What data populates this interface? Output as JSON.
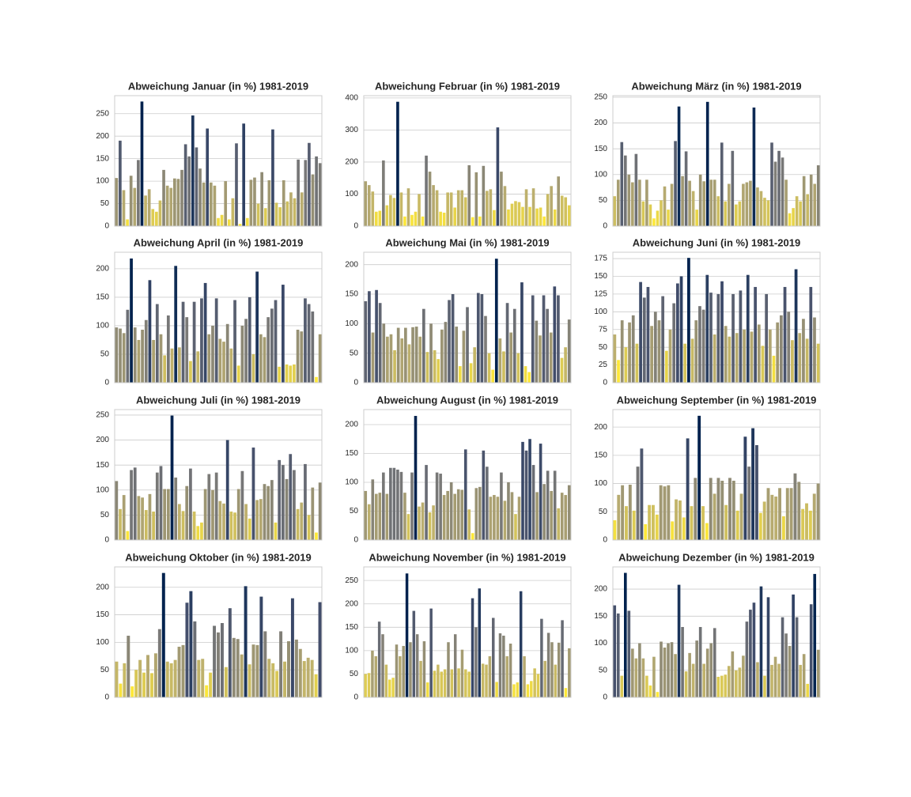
{
  "chart_data": [
    {
      "type": "bar",
      "title": "Abweichung Januar (in %) 1981-2019",
      "colormap": "cividis_r",
      "grid": true,
      "ylim": [
        0,
        290
      ],
      "yticks": [
        0,
        50,
        100,
        150,
        200,
        250
      ],
      "values": [
        107,
        190,
        80,
        15,
        112,
        85,
        147,
        277,
        68,
        82,
        38,
        32,
        57,
        125,
        90,
        85,
        106,
        105,
        125,
        182,
        155,
        246,
        175,
        128,
        97,
        217,
        97,
        90,
        18,
        25,
        100,
        15,
        62,
        184,
        5,
        228,
        18,
        103,
        108,
        50,
        120,
        40,
        102,
        215,
        52,
        42,
        102,
        55,
        75,
        62,
        148,
        75,
        147,
        185,
        115,
        155,
        140
      ]
    },
    {
      "type": "bar",
      "title": "Abweichung Februar (in %) 1981-2019",
      "colormap": "cividis_r",
      "grid": true,
      "ylim": [
        0,
        407
      ],
      "yticks": [
        0,
        100,
        200,
        300,
        400
      ],
      "values": [
        140,
        128,
        108,
        45,
        48,
        205,
        65,
        97,
        88,
        388,
        105,
        30,
        118,
        35,
        45,
        100,
        30,
        220,
        170,
        128,
        112,
        45,
        42,
        105,
        105,
        58,
        112,
        112,
        90,
        190,
        28,
        168,
        30,
        188,
        110,
        115,
        50,
        308,
        170,
        125,
        52,
        70,
        78,
        75,
        60,
        115,
        60,
        118,
        55,
        58,
        30,
        100,
        125,
        52,
        155,
        95,
        90,
        65
      ]
    },
    {
      "type": "bar",
      "title": "Abweichung März (in %) 1981-2019",
      "colormap": "cividis_r",
      "grid": true,
      "ylim": [
        0,
        253
      ],
      "yticks": [
        0,
        50,
        100,
        150,
        200,
        250
      ],
      "values": [
        58,
        90,
        163,
        137,
        100,
        85,
        140,
        90,
        48,
        90,
        42,
        15,
        30,
        50,
        77,
        32,
        82,
        165,
        232,
        97,
        145,
        88,
        68,
        32,
        100,
        87,
        241,
        90,
        90,
        58,
        162,
        48,
        82,
        146,
        42,
        48,
        82,
        85,
        88,
        230,
        75,
        68,
        55,
        50,
        162,
        125,
        146,
        133,
        90,
        25,
        35,
        58,
        48,
        97,
        62,
        100,
        82,
        118
      ]
    },
    {
      "type": "bar",
      "title": "Abweichung April (in %) 1981-2019",
      "colormap": "cividis_r",
      "grid": true,
      "ylim": [
        0,
        229
      ],
      "yticks": [
        0,
        50,
        100,
        150,
        200
      ],
      "values": [
        97,
        95,
        87,
        128,
        218,
        97,
        75,
        93,
        110,
        180,
        75,
        138,
        85,
        48,
        118,
        60,
        205,
        62,
        142,
        115,
        38,
        142,
        55,
        148,
        175,
        85,
        100,
        148,
        77,
        72,
        103,
        60,
        145,
        30,
        100,
        112,
        150,
        50,
        195,
        85,
        80,
        115,
        130,
        145,
        28,
        172,
        32,
        30,
        32,
        93,
        90,
        148,
        138,
        125,
        10,
        85
      ]
    },
    {
      "type": "bar",
      "title": "Abweichung Mai (in %) 1981-2019",
      "colormap": "cividis_r",
      "grid": true,
      "ylim": [
        0,
        221
      ],
      "yticks": [
        0,
        50,
        100,
        150,
        200
      ],
      "values": [
        138,
        155,
        85,
        157,
        135,
        100,
        78,
        82,
        55,
        93,
        75,
        93,
        65,
        94,
        95,
        78,
        125,
        52,
        100,
        55,
        40,
        90,
        103,
        140,
        150,
        95,
        28,
        88,
        128,
        33,
        60,
        152,
        150,
        113,
        50,
        22,
        210,
        75,
        53,
        135,
        85,
        125,
        50,
        170,
        28,
        18,
        148,
        105,
        80,
        148,
        125,
        85,
        163,
        148,
        42,
        60,
        107
      ]
    },
    {
      "type": "bar",
      "title": "Abweichung Juni (in %) 1981-2019",
      "colormap": "cividis_r",
      "grid": true,
      "ylim": [
        0,
        184
      ],
      "yticks": [
        0,
        25,
        50,
        75,
        100,
        125,
        150,
        175
      ],
      "values": [
        68,
        32,
        88,
        50,
        85,
        95,
        55,
        142,
        120,
        135,
        80,
        100,
        88,
        122,
        45,
        75,
        112,
        140,
        150,
        55,
        176,
        62,
        88,
        108,
        103,
        152,
        127,
        68,
        125,
        143,
        80,
        65,
        125,
        70,
        130,
        75,
        152,
        72,
        135,
        82,
        52,
        125,
        75,
        38,
        85,
        95,
        135,
        100,
        60,
        160,
        70,
        90,
        62,
        135,
        92,
        55
      ]
    },
    {
      "type": "bar",
      "title": "Abweichung Juli (in %) 1981-2019",
      "colormap": "cividis_r",
      "grid": true,
      "ylim": [
        0,
        261
      ],
      "yticks": [
        0,
        50,
        100,
        150,
        200,
        250
      ],
      "values": [
        118,
        62,
        90,
        18,
        140,
        145,
        88,
        85,
        60,
        92,
        57,
        135,
        148,
        102,
        102,
        249,
        125,
        72,
        58,
        108,
        143,
        57,
        28,
        35,
        102,
        132,
        100,
        135,
        78,
        73,
        200,
        57,
        55,
        102,
        138,
        72,
        43,
        185,
        80,
        82,
        112,
        108,
        120,
        35,
        160,
        150,
        122,
        172,
        140,
        62,
        75,
        152,
        50,
        105,
        15,
        115
      ]
    },
    {
      "type": "bar",
      "title": "Abweichung August (in %) 1981-2019",
      "colormap": "cividis_r",
      "grid": true,
      "ylim": [
        0,
        226
      ],
      "yticks": [
        0,
        50,
        100,
        150,
        200
      ],
      "values": [
        85,
        62,
        105,
        80,
        82,
        117,
        80,
        125,
        125,
        122,
        118,
        82,
        45,
        117,
        215,
        58,
        65,
        130,
        48,
        60,
        117,
        115,
        78,
        85,
        100,
        80,
        88,
        87,
        157,
        53,
        12,
        90,
        92,
        155,
        127,
        75,
        78,
        75,
        117,
        68,
        100,
        83,
        45,
        75,
        170,
        155,
        175,
        130,
        83,
        167,
        97,
        120,
        85,
        120,
        55,
        82,
        78,
        95
      ]
    },
    {
      "type": "bar",
      "title": "Abweichung September (in %) 1981-2019",
      "colormap": "cividis_r",
      "grid": true,
      "ylim": [
        0,
        231
      ],
      "yticks": [
        0,
        50,
        100,
        150,
        200
      ],
      "values": [
        35,
        80,
        97,
        60,
        98,
        52,
        130,
        162,
        28,
        62,
        62,
        45,
        97,
        95,
        97,
        33,
        72,
        70,
        40,
        180,
        60,
        110,
        220,
        60,
        30,
        110,
        82,
        110,
        105,
        62,
        110,
        105,
        52,
        82,
        183,
        130,
        198,
        168,
        48,
        68,
        92,
        80,
        77,
        92,
        42,
        92,
        92,
        118,
        103,
        55,
        65,
        52,
        82,
        100
      ]
    },
    {
      "type": "bar",
      "title": "Abweichung Oktober (in %) 1981-2019",
      "colormap": "cividis_r",
      "grid": true,
      "ylim": [
        0,
        237
      ],
      "yticks": [
        0,
        50,
        100,
        150,
        200
      ],
      "values": [
        65,
        25,
        62,
        112,
        20,
        50,
        68,
        45,
        77,
        44,
        80,
        124,
        226,
        65,
        62,
        68,
        92,
        95,
        172,
        193,
        138,
        68,
        70,
        22,
        45,
        130,
        118,
        135,
        55,
        162,
        108,
        106,
        78,
        202,
        60,
        96,
        95,
        183,
        120,
        70,
        62,
        48,
        120,
        65,
        102,
        180,
        105,
        88,
        66,
        72,
        68,
        42,
        173
      ]
    },
    {
      "type": "bar",
      "title": "Abweichung November (in %) 1981-2019",
      "colormap": "cividis_r",
      "grid": true,
      "ylim": [
        0,
        279
      ],
      "yticks": [
        0,
        50,
        100,
        150,
        200,
        250
      ],
      "values": [
        50,
        52,
        100,
        88,
        162,
        135,
        70,
        38,
        42,
        113,
        88,
        110,
        265,
        118,
        185,
        135,
        78,
        120,
        32,
        190,
        57,
        70,
        55,
        60,
        118,
        60,
        135,
        62,
        102,
        60,
        55,
        212,
        150,
        233,
        72,
        70,
        88,
        170,
        33,
        137,
        132,
        88,
        115,
        28,
        32,
        227,
        88,
        28,
        35,
        62,
        50,
        168,
        78,
        138,
        118,
        70,
        117,
        165,
        20,
        105
      ]
    },
    {
      "type": "bar",
      "title": "Abweichung Dezember (in %) 1981-2019",
      "colormap": "cividis_r",
      "grid": true,
      "ylim": [
        0,
        241
      ],
      "yticks": [
        0,
        50,
        100,
        150,
        200
      ],
      "values": [
        170,
        155,
        40,
        230,
        160,
        90,
        72,
        100,
        72,
        40,
        22,
        75,
        10,
        103,
        92,
        100,
        102,
        80,
        208,
        130,
        48,
        82,
        62,
        105,
        130,
        62,
        90,
        100,
        128,
        38,
        40,
        42,
        58,
        85,
        50,
        55,
        77,
        140,
        162,
        175,
        65,
        205,
        40,
        185,
        60,
        75,
        62,
        148,
        118,
        95,
        190,
        148,
        60,
        80,
        25,
        172,
        228,
        88
      ]
    }
  ]
}
